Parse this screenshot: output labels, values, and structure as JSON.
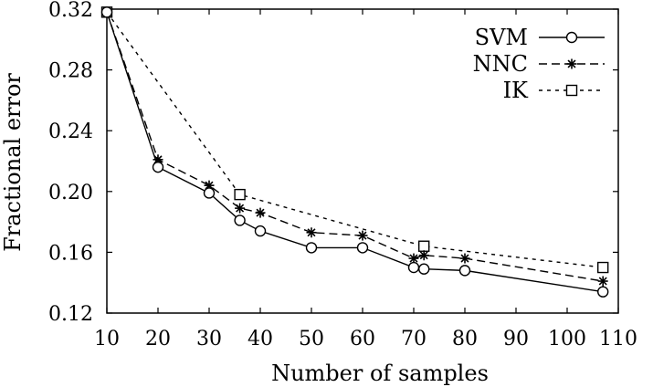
{
  "chart_data": {
    "type": "line",
    "title": "",
    "xlabel": "Number of samples",
    "ylabel": "Fractional error",
    "xlim": [
      10,
      110
    ],
    "ylim": [
      0.12,
      0.32
    ],
    "xticks": [
      "10",
      "20",
      "30",
      "40",
      "50",
      "60",
      "70",
      "80",
      "90",
      "100",
      "110"
    ],
    "yticks": [
      "0.12",
      "0.16",
      "0.20",
      "0.24",
      "0.28",
      "0.32"
    ],
    "grid": false,
    "legend_position": "top-right",
    "series": [
      {
        "name": "SVM",
        "marker": "circle",
        "line_style": "solid",
        "x": [
          10,
          20,
          30,
          36,
          40,
          50,
          60,
          70,
          72,
          80,
          107
        ],
        "y": [
          0.318,
          0.216,
          0.199,
          0.181,
          0.174,
          0.163,
          0.163,
          0.15,
          0.149,
          0.148,
          0.134
        ]
      },
      {
        "name": "NNC",
        "marker": "asterisk",
        "line_style": "dashed",
        "x": [
          10,
          20,
          30,
          36,
          40,
          50,
          60,
          70,
          72,
          80,
          107
        ],
        "y": [
          0.318,
          0.221,
          0.204,
          0.189,
          0.186,
          0.173,
          0.171,
          0.156,
          0.158,
          0.156,
          0.141
        ]
      },
      {
        "name": "IK",
        "marker": "square",
        "line_style": "dotted",
        "x": [
          10,
          36,
          72,
          107
        ],
        "y": [
          0.318,
          0.198,
          0.164,
          0.15
        ]
      }
    ]
  }
}
